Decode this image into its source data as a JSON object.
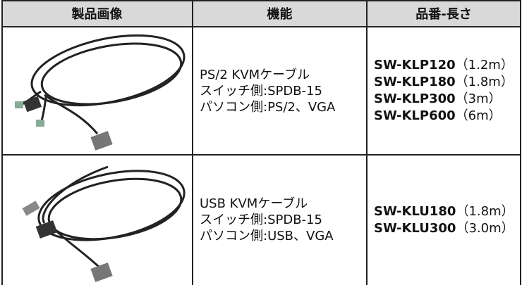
{
  "table": {
    "header": [
      "製品画像",
      "機能",
      "品番-長さ"
    ],
    "rows": [
      {
        "function": [
          "PS/2 KVMケーブル",
          "スイッチ側:SPDB-15",
          "パソコン側:PS/2、VGA"
        ],
        "models": [
          {
            "code": "SW-KLP120",
            "length": "（1.2m）"
          },
          {
            "code": "SW-KLP180",
            "length": "（1.8m）"
          },
          {
            "code": "SW-KLP300",
            "length": "（3m）"
          },
          {
            "code": "SW-KLP600",
            "length": "（6m）"
          }
        ]
      },
      {
        "function": [
          "USB KVMケーブル",
          "スイッチ側:SPDB-15",
          "パソコン側:USB、VGA"
        ],
        "models": [
          {
            "code": "SW-KLU180",
            "length": "（1.8m）"
          },
          {
            "code": "SW-KLU300",
            "length": "（3.0m）"
          }
        ]
      }
    ]
  }
}
